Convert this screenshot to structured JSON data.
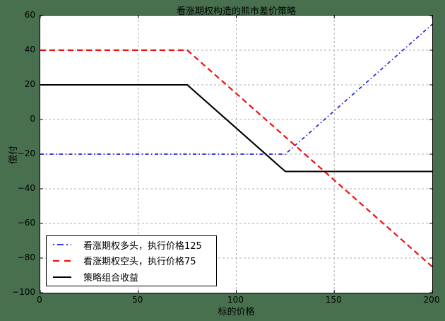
{
  "figure": {
    "title": "看涨期权构造的熊市差价策略",
    "background_color": "#48704f",
    "plot_background_color": "#ffffff"
  },
  "axes": {
    "xlabel": "标的价格",
    "ylabel": "偿付",
    "xlim": [
      0,
      200
    ],
    "ylim": [
      -100,
      60
    ],
    "x_ticks": [
      0,
      50,
      100,
      150,
      200
    ],
    "x_tick_labels": [
      "0",
      "50",
      "100",
      "150",
      "200"
    ],
    "y_ticks": [
      60,
      40,
      20,
      0,
      -20,
      -40,
      -60,
      -80,
      -100
    ],
    "y_tick_labels": [
      "60",
      "40",
      "20",
      "0",
      "−20",
      "−40",
      "−60",
      "−80",
      "−100"
    ],
    "grid": true,
    "grid_color": "#b0b0b0"
  },
  "legend": {
    "position": "lower-left",
    "items": [
      {
        "label": "看涨期权多头，执行价格125",
        "color": "#2222dd",
        "style": "dashdot"
      },
      {
        "label": "看涨期权空头，执行价格75",
        "color": "#ee1111",
        "style": "dashed"
      },
      {
        "label": "策略组合收益",
        "color": "#000000",
        "style": "solid"
      }
    ]
  },
  "chart_data": {
    "type": "line",
    "title": "看涨期权构造的熊市差价策略",
    "xlabel": "标的价格",
    "ylabel": "偿付",
    "xlim": [
      0,
      200
    ],
    "ylim": [
      -100,
      60
    ],
    "x_ticks": [
      0,
      50,
      100,
      150,
      200
    ],
    "y_ticks": [
      60,
      40,
      20,
      0,
      -20,
      -40,
      -60,
      -80,
      -100
    ],
    "grid": true,
    "legend_position": "lower-left",
    "series": [
      {
        "name": "看涨期权多头，执行价格125",
        "color": "#2222dd",
        "linestyle": "dashdot",
        "points": [
          [
            0,
            -20
          ],
          [
            125,
            -20
          ],
          [
            200,
            55
          ]
        ]
      },
      {
        "name": "看涨期权空头，执行价格75",
        "color": "#ee1111",
        "linestyle": "dashed",
        "points": [
          [
            0,
            40
          ],
          [
            75,
            40
          ],
          [
            200,
            -85
          ]
        ]
      },
      {
        "name": "策略组合收益",
        "color": "#000000",
        "linestyle": "solid",
        "points": [
          [
            0,
            20
          ],
          [
            75,
            20
          ],
          [
            125,
            -30
          ],
          [
            200,
            -30
          ]
        ]
      }
    ]
  }
}
